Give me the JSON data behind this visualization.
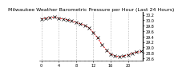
{
  "title": "Milwaukee Weather Barometric Pressure per Hour (Last 24 Hours)",
  "x_values": [
    0,
    1,
    2,
    3,
    4,
    5,
    6,
    7,
    8,
    9,
    10,
    11,
    12,
    13,
    14,
    15,
    16,
    17,
    18,
    19,
    20,
    21,
    22,
    23
  ],
  "y_values": [
    30.05,
    30.08,
    30.1,
    30.12,
    30.08,
    30.05,
    30.02,
    29.98,
    29.92,
    29.88,
    29.82,
    29.72,
    29.55,
    29.35,
    29.1,
    28.9,
    28.75,
    28.68,
    28.65,
    28.68,
    28.72,
    28.78,
    28.82,
    28.85
  ],
  "line_color": "#dd0000",
  "marker_color": "#000000",
  "bg_color": "#ffffff",
  "grid_color": "#999999",
  "tick_color": "#000000",
  "ylim": [
    28.5,
    30.3
  ],
  "ytick_values": [
    28.6,
    28.8,
    29.0,
    29.2,
    29.4,
    29.6,
    29.8,
    30.0,
    30.2
  ],
  "xlim": [
    -0.5,
    23.5
  ],
  "title_fontsize": 4.5,
  "tick_fontsize": 3.5,
  "line_width": 0.7,
  "marker_size": 3.0
}
